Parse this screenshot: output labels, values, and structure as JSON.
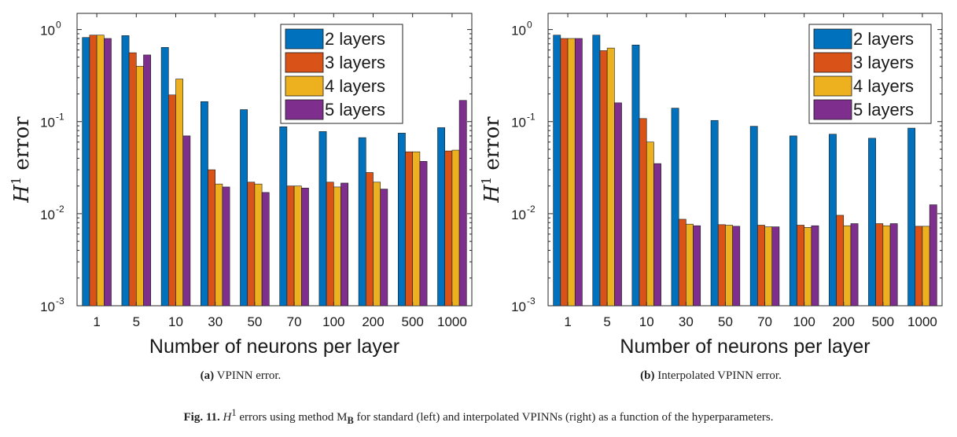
{
  "chart_data": [
    {
      "type": "bar",
      "yscale": "log",
      "ylim": [
        0.001,
        1.5
      ],
      "ylabel": "H^1 error",
      "xlabel": "Number of neurons per layer",
      "categories": [
        "1",
        "5",
        "10",
        "30",
        "50",
        "70",
        "100",
        "200",
        "500",
        "1000"
      ],
      "ytick_labels": [
        "10",
        "10",
        "10",
        "10"
      ],
      "ytick_exponents": [
        "-3",
        "-2",
        "-1",
        "0"
      ],
      "legend_position": "top-right",
      "series": [
        {
          "name": "2 layers",
          "color": "#0072BD",
          "values": [
            0.82,
            0.86,
            0.64,
            0.165,
            0.135,
            0.088,
            0.078,
            0.067,
            0.075,
            0.086
          ]
        },
        {
          "name": "3 layers",
          "color": "#D95319",
          "values": [
            0.87,
            0.56,
            0.195,
            0.03,
            0.022,
            0.02,
            0.022,
            0.028,
            0.047,
            0.048
          ]
        },
        {
          "name": "4 layers",
          "color": "#EDB120",
          "values": [
            0.87,
            0.4,
            0.29,
            0.021,
            0.021,
            0.02,
            0.0195,
            0.022,
            0.047,
            0.049
          ]
        },
        {
          "name": "5 layers",
          "color": "#7E2F8E",
          "values": [
            0.8,
            0.53,
            0.07,
            0.0195,
            0.017,
            0.019,
            0.0215,
            0.0185,
            0.037,
            0.17
          ]
        }
      ],
      "caption_label": "(a)",
      "caption_text": " VPINN error."
    },
    {
      "type": "bar",
      "yscale": "log",
      "ylim": [
        0.001,
        1.5
      ],
      "ylabel": "H^1 error",
      "xlabel": "Number of neurons per layer",
      "categories": [
        "1",
        "5",
        "10",
        "30",
        "50",
        "70",
        "100",
        "200",
        "500",
        "1000"
      ],
      "ytick_labels": [
        "10",
        "10",
        "10",
        "10"
      ],
      "ytick_exponents": [
        "-3",
        "-2",
        "-1",
        "0"
      ],
      "legend_position": "top-right",
      "series": [
        {
          "name": "2 layers",
          "color": "#0072BD",
          "values": [
            0.87,
            0.87,
            0.68,
            0.14,
            0.103,
            0.089,
            0.07,
            0.073,
            0.066,
            0.085
          ]
        },
        {
          "name": "3 layers",
          "color": "#D95319",
          "values": [
            0.8,
            0.59,
            0.108,
            0.0087,
            0.0076,
            0.0075,
            0.0075,
            0.0096,
            0.0078,
            0.0073
          ]
        },
        {
          "name": "4 layers",
          "color": "#EDB120",
          "values": [
            0.8,
            0.63,
            0.06,
            0.0077,
            0.0075,
            0.0072,
            0.0071,
            0.0074,
            0.0074,
            0.0073
          ]
        },
        {
          "name": "5 layers",
          "color": "#7E2F8E",
          "values": [
            0.8,
            0.16,
            0.035,
            0.0074,
            0.0073,
            0.0072,
            0.0074,
            0.0078,
            0.0078,
            0.0125
          ]
        }
      ],
      "caption_label": "(b)",
      "caption_text": " Interpolated VPINN error."
    }
  ],
  "figure_caption": {
    "label": "Fig. 11.",
    "text_before": " H",
    "superscript": "1",
    "text_mid": " errors using method M",
    "subscript": "B",
    "text_after": " for standard (left) and interpolated VPINNs (right) as a function of the hyperparameters."
  }
}
